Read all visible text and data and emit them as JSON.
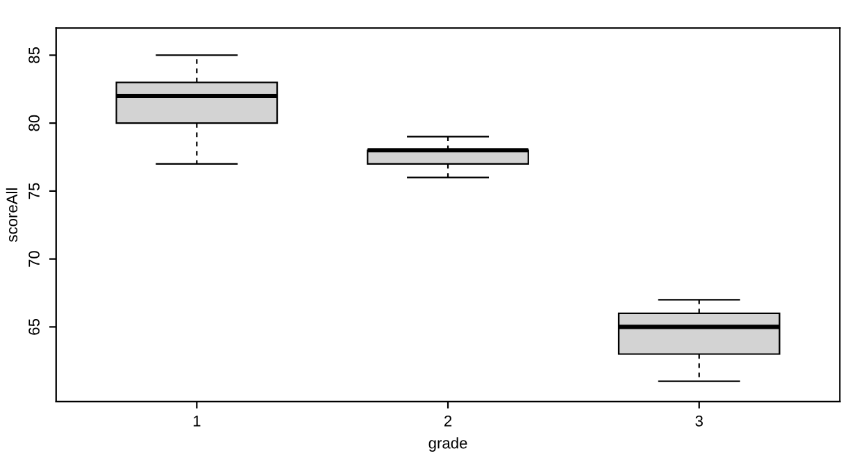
{
  "chart_data": {
    "type": "box",
    "xlabel": "grade",
    "ylabel": "scoreAll",
    "categories": [
      "1",
      "2",
      "3"
    ],
    "boxes": [
      {
        "low": 77,
        "q1": 80,
        "median": 82,
        "q3": 83,
        "high": 85
      },
      {
        "low": 76,
        "q1": 77,
        "median": 78,
        "q3": 78,
        "high": 79
      },
      {
        "low": 61,
        "q1": 63,
        "median": 65,
        "q3": 66,
        "high": 67
      }
    ],
    "color": "#d3d3d3",
    "ylim": [
      59.5,
      87
    ],
    "yticks": [
      65,
      70,
      75,
      80,
      85
    ],
    "grid": false,
    "legend": false
  }
}
